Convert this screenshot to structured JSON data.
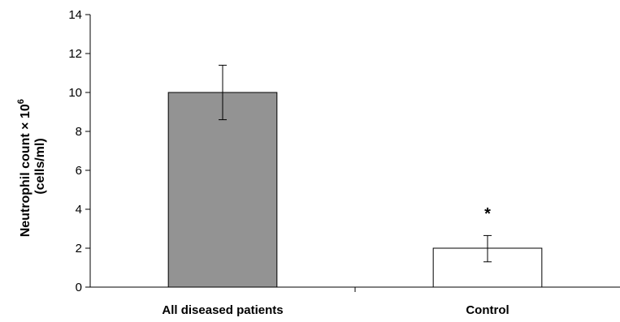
{
  "chart_data": {
    "type": "bar",
    "title": "",
    "xlabel": "",
    "ylabel_line1": "Neutrophil count × 10",
    "ylabel_superscript": "6",
    "ylabel_line2": "(cells/ml)",
    "ylim": [
      0,
      14
    ],
    "yticks": [
      "0",
      "2",
      "4",
      "6",
      "8",
      "10",
      "12",
      "14"
    ],
    "categories": [
      "All diseased patients",
      "Control"
    ],
    "values": [
      10.0,
      2.0
    ],
    "error_low": [
      8.6,
      1.3
    ],
    "error_high": [
      11.4,
      2.65
    ],
    "bar_colors": [
      "#939393",
      "#ffffff"
    ],
    "annotations": [
      {
        "category_index": 1,
        "text": "*",
        "value": 4.0
      }
    ],
    "grid": false,
    "legend": "none"
  }
}
